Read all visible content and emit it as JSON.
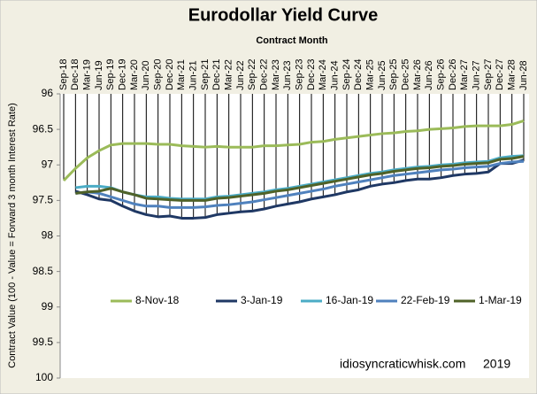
{
  "chart_data": {
    "type": "line",
    "title": "Eurodollar Yield Curve",
    "x_label": "Contract Month",
    "y_label": "Contract Value (100 - Value = Forward 3 month Interest Rate)",
    "annotations": [
      "idiosyncraticwhisk.com",
      "2019"
    ],
    "categories": [
      "Sep-18",
      "Dec-18",
      "Mar-19",
      "Jun-19",
      "Sep-19",
      "Dec-19",
      "Mar-20",
      "Jun-20",
      "Sep-20",
      "Dec-20",
      "Mar-21",
      "Jun-21",
      "Sep-21",
      "Dec-21",
      "Mar-22",
      "Jun-22",
      "Sep-22",
      "Dec-22",
      "Mar-23",
      "Jun-23",
      "Sep-23",
      "Dec-23",
      "Mar-24",
      "Jun-24",
      "Sep-24",
      "Dec-24",
      "Mar-25",
      "Jun-25",
      "Sep-25",
      "Dec-25",
      "Mar-26",
      "Jun-26",
      "Sep-26",
      "Dec-26",
      "Mar-27",
      "Jun-27",
      "Sep-27",
      "Dec-27",
      "Mar-28",
      "Jun-28"
    ],
    "series": [
      {
        "name": "8-Nov-18",
        "color": "#9bbb59",
        "values": [
          97.22,
          97.05,
          96.9,
          96.8,
          96.72,
          96.7,
          96.7,
          96.7,
          96.71,
          96.71,
          96.73,
          96.74,
          96.75,
          96.74,
          96.75,
          96.75,
          96.75,
          96.73,
          96.73,
          96.72,
          96.71,
          96.68,
          96.67,
          96.64,
          96.62,
          96.6,
          96.58,
          96.56,
          96.55,
          96.53,
          96.52,
          96.5,
          96.49,
          96.48,
          96.46,
          96.45,
          96.45,
          96.45,
          96.43,
          96.38
        ]
      },
      {
        "name": "3-Jan-19",
        "color": "#1f3864",
        "values": [
          null,
          97.37,
          97.42,
          97.48,
          97.5,
          97.58,
          97.65,
          97.7,
          97.73,
          97.72,
          97.75,
          97.75,
          97.74,
          97.7,
          97.68,
          97.66,
          97.65,
          97.62,
          97.58,
          97.55,
          97.52,
          97.48,
          97.45,
          97.42,
          97.38,
          97.35,
          97.3,
          97.27,
          97.25,
          97.22,
          97.2,
          97.2,
          97.18,
          97.15,
          97.13,
          97.12,
          97.1,
          96.98,
          96.98,
          96.93
        ]
      },
      {
        "name": "16-Jan-19",
        "color": "#4bacc6",
        "values": [
          null,
          97.32,
          97.3,
          97.3,
          97.32,
          97.38,
          97.42,
          97.45,
          97.45,
          97.47,
          97.48,
          97.48,
          97.48,
          97.45,
          97.44,
          97.42,
          97.4,
          97.38,
          97.35,
          97.33,
          97.3,
          97.27,
          97.24,
          97.21,
          97.18,
          97.15,
          97.12,
          97.1,
          97.07,
          97.05,
          97.03,
          97.02,
          97.0,
          96.99,
          96.97,
          96.96,
          96.95,
          96.9,
          96.88,
          96.87
        ]
      },
      {
        "name": "22-Feb-19",
        "color": "#4f81bd",
        "values": [
          null,
          97.4,
          97.38,
          97.4,
          97.45,
          97.5,
          97.55,
          97.58,
          97.58,
          97.6,
          97.6,
          97.6,
          97.59,
          97.57,
          97.56,
          97.54,
          97.52,
          97.49,
          97.46,
          97.43,
          97.4,
          97.37,
          97.34,
          97.3,
          97.27,
          97.24,
          97.21,
          97.18,
          97.15,
          97.13,
          97.11,
          97.09,
          97.07,
          97.06,
          97.04,
          97.03,
          97.02,
          96.98,
          96.96,
          96.95
        ]
      },
      {
        "name": "1-Mar-19",
        "color": "#4f6228",
        "values": [
          null,
          97.4,
          97.38,
          97.37,
          97.33,
          97.38,
          97.42,
          97.47,
          97.48,
          97.49,
          97.5,
          97.5,
          97.5,
          97.47,
          97.46,
          97.44,
          97.42,
          97.4,
          97.37,
          97.35,
          97.32,
          97.29,
          97.26,
          97.23,
          97.2,
          97.17,
          97.14,
          97.12,
          97.09,
          97.07,
          97.05,
          97.04,
          97.02,
          97.01,
          96.99,
          96.98,
          96.97,
          96.92,
          96.91,
          96.88
        ]
      }
    ],
    "ylim": [
      96,
      100
    ],
    "yticks": [
      96,
      96.5,
      97,
      97.5,
      98,
      98.5,
      99,
      99.5,
      100
    ],
    "y_inverted": true,
    "grid": false,
    "drop_lines": true,
    "legend": "bottom"
  }
}
